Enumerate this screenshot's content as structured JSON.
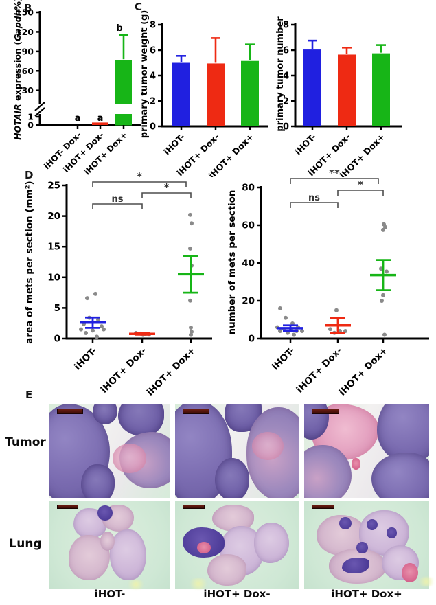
{
  "figure": {
    "panel_labels": {
      "B": "B",
      "C": "C",
      "D": "D",
      "E": "E"
    },
    "colors": {
      "blue": "#2020e0",
      "red": "#ee2a13",
      "green": "#17b517",
      "point_gray": "#8a8a8a",
      "bracket": "#4d4d4d"
    },
    "panel_e": {
      "row_labels": [
        "Tumor",
        "Lung"
      ],
      "col_labels": [
        "iHOT-",
        "iHOT+ Dox-",
        "iHOT+ Dox+"
      ]
    }
  },
  "chart_data": [
    {
      "id": "B",
      "panel": "B",
      "type": "bar",
      "title": "",
      "ylabel": "HOTAIR expression (Gapdh%)",
      "ylabel_segments": [
        {
          "text": "HOTAIR",
          "italic": true
        },
        {
          "text": " expression (",
          "italic": false
        },
        {
          "text": "Gapdh",
          "italic": true
        },
        {
          "text": "%)",
          "italic": false
        }
      ],
      "categories": [
        "iHOT- Dox-",
        "iHOT+ Dox-",
        "iHOT+ Dox+"
      ],
      "values": [
        0.02,
        0.3,
        77
      ],
      "errors": [
        0,
        0,
        38
      ],
      "bar_colors": [
        "#2020e0",
        "#ee2a13",
        "#17b517"
      ],
      "bar_letters": [
        "a",
        "a",
        "b"
      ],
      "axis_break": true,
      "yticks_lower": [
        0,
        1
      ],
      "yticks_upper": [
        30,
        60,
        90,
        120,
        150
      ],
      "ylim": [
        0,
        150
      ],
      "grid": false
    },
    {
      "id": "C1",
      "panel": "C",
      "type": "bar",
      "title": "",
      "ylabel": "primary tumor weight (g)",
      "categories": [
        "iHOT-",
        "iHOT+ Dox-",
        "iHOT+ Dox+"
      ],
      "values": [
        5.0,
        4.95,
        5.15
      ],
      "errors": [
        0.55,
        2.0,
        1.3
      ],
      "bar_colors": [
        "#2020e0",
        "#ee2a13",
        "#17b517"
      ],
      "yticks": [
        0,
        2,
        4,
        6,
        8
      ],
      "ylim": [
        0,
        8
      ],
      "grid": false
    },
    {
      "id": "C2",
      "panel": "C",
      "type": "bar",
      "title": "",
      "ylabel": "primary tumor number",
      "categories": [
        "iHOT-",
        "iHOT+ Dox-",
        "iHOT+ Dox+"
      ],
      "values": [
        6.05,
        5.65,
        5.75
      ],
      "errors": [
        0.7,
        0.55,
        0.65
      ],
      "bar_colors": [
        "#2020e0",
        "#ee2a13",
        "#17b517"
      ],
      "yticks": [
        0,
        2,
        4,
        6,
        8
      ],
      "ylim": [
        0,
        8
      ],
      "grid": false
    },
    {
      "id": "D1",
      "panel": "D",
      "type": "scatter",
      "title": "",
      "ylabel": "area of mets per section (mm²)",
      "categories": [
        "iHOT-",
        "iHOT+ Dox-",
        "iHOT+ Dox+"
      ],
      "yticks": [
        0,
        5,
        10,
        15,
        20,
        25
      ],
      "ylim": [
        0,
        25
      ],
      "point_color": "#8a8a8a",
      "groups": [
        {
          "name": "iHOT-",
          "color": "#2020e0",
          "mean": 2.6,
          "sem": 0.85,
          "points": [
            [
              -8,
              6.6
            ],
            [
              4,
              7.3
            ],
            [
              -5,
              3.4
            ],
            [
              8,
              3.1
            ],
            [
              -13,
              2.4
            ],
            [
              13,
              2.0
            ],
            [
              -17,
              1.5
            ],
            [
              16,
              1.5
            ],
            [
              0,
              1.3
            ],
            [
              -10,
              0.9
            ],
            [
              6,
              0.3
            ]
          ]
        },
        {
          "name": "iHOT+ Dox-",
          "color": "#ee2a13",
          "mean": 0.75,
          "sem": 0.12,
          "points": [
            [
              -9,
              0.9
            ],
            [
              -2,
              0.8
            ],
            [
              5,
              0.75
            ],
            [
              10,
              0.65
            ],
            [
              1,
              0.6
            ]
          ]
        },
        {
          "name": "iHOT+ Dox+",
          "color": "#17b517",
          "mean": 10.5,
          "sem": 3.0,
          "points": [
            [
              -1,
              20.2
            ],
            [
              1,
              18.8
            ],
            [
              -1,
              14.7
            ],
            [
              1,
              11.9
            ],
            [
              -1,
              6.2
            ],
            [
              0,
              1.8
            ],
            [
              1,
              1.1
            ],
            [
              0,
              0.6
            ]
          ]
        }
      ],
      "comparisons": [
        {
          "a": 0,
          "b": 2,
          "label": "*"
        },
        {
          "a": 1,
          "b": 2,
          "label": "*"
        },
        {
          "a": 0,
          "b": 1,
          "label": "ns"
        }
      ],
      "grid": false
    },
    {
      "id": "D2",
      "panel": "D",
      "type": "scatter",
      "title": "",
      "ylabel": "number of mets per section",
      "categories": [
        "iHOT-",
        "iHOT+ Dox-",
        "iHOT+ Dox+"
      ],
      "yticks": [
        0,
        20,
        40,
        60,
        80
      ],
      "ylim": [
        0,
        80
      ],
      "point_color": "#8a8a8a",
      "groups": [
        {
          "name": "iHOT-",
          "color": "#2020e0",
          "mean": 5.5,
          "sem": 1.5,
          "points": [
            [
              -15,
              16
            ],
            [
              -7,
              11
            ],
            [
              3,
              8
            ],
            [
              -19,
              6
            ],
            [
              11,
              6
            ],
            [
              -9,
              5
            ],
            [
              1,
              5
            ],
            [
              9,
              4
            ],
            [
              -15,
              4
            ],
            [
              17,
              4
            ],
            [
              -4,
              3
            ],
            [
              5,
              2
            ]
          ]
        },
        {
          "name": "iHOT+ Dox-",
          "color": "#ee2a13",
          "mean": 7,
          "sem": 4,
          "points": [
            [
              -2,
              15
            ],
            [
              -11,
              5
            ],
            [
              3,
              4
            ],
            [
              11,
              4
            ],
            [
              -5,
              3
            ]
          ]
        },
        {
          "name": "iHOT+ Dox+",
          "color": "#17b517",
          "mean": 33.6,
          "sem": 8,
          "points": [
            [
              1,
              60.5
            ],
            [
              3,
              59
            ],
            [
              0,
              57.5
            ],
            [
              -3,
              37
            ],
            [
              5,
              35.5
            ],
            [
              0,
              23
            ],
            [
              -2,
              20
            ],
            [
              2,
              2
            ]
          ]
        }
      ],
      "comparisons": [
        {
          "a": 0,
          "b": 2,
          "label": "**"
        },
        {
          "a": 1,
          "b": 2,
          "label": "*"
        },
        {
          "a": 0,
          "b": 1,
          "label": "ns"
        }
      ],
      "grid": false
    }
  ]
}
